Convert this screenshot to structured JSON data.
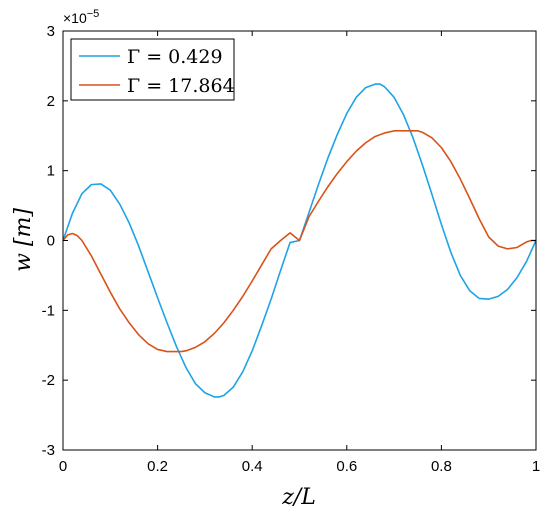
{
  "chart_data": {
    "type": "line",
    "xlabel": "z/L",
    "ylabel": "w [m]",
    "exponent_label": "×10",
    "exponent_power": "−5",
    "xlim": [
      0,
      1
    ],
    "ylim": [
      -3,
      3
    ],
    "x_ticks": [
      0,
      0.2,
      0.4,
      0.6,
      0.8,
      1
    ],
    "x_tick_labels": [
      "0",
      "0.2",
      "0.4",
      "0.6",
      "0.8",
      "1"
    ],
    "y_ticks": [
      -3,
      -2,
      -1,
      0,
      1,
      2,
      3
    ],
    "y_tick_labels": [
      "-3",
      "-2",
      "-1",
      "0",
      "1",
      "2",
      "3"
    ],
    "grid": false,
    "legend_position": "top-left",
    "series": [
      {
        "name": "Γ = 0.429",
        "color": "#1fa3e6",
        "x": [
          0,
          0.02,
          0.04,
          0.06,
          0.08,
          0.1,
          0.12,
          0.14,
          0.16,
          0.18,
          0.2,
          0.22,
          0.24,
          0.26,
          0.28,
          0.3,
          0.32,
          0.33,
          0.34,
          0.36,
          0.38,
          0.4,
          0.42,
          0.44,
          0.46,
          0.48,
          0.5,
          0.52,
          0.54,
          0.56,
          0.58,
          0.6,
          0.62,
          0.64,
          0.66,
          0.67,
          0.68,
          0.7,
          0.72,
          0.74,
          0.76,
          0.78,
          0.8,
          0.82,
          0.84,
          0.86,
          0.88,
          0.9,
          0.92,
          0.94,
          0.96,
          0.98,
          1.0
        ],
        "y": [
          0.0,
          0.39,
          0.67,
          0.8,
          0.81,
          0.72,
          0.52,
          0.25,
          -0.08,
          -0.45,
          -0.82,
          -1.18,
          -1.52,
          -1.82,
          -2.05,
          -2.18,
          -2.24,
          -2.24,
          -2.22,
          -2.1,
          -1.88,
          -1.58,
          -1.22,
          -0.84,
          -0.43,
          -0.03,
          0.0,
          0.4,
          0.8,
          1.18,
          1.52,
          1.82,
          2.05,
          2.19,
          2.24,
          2.24,
          2.2,
          2.05,
          1.8,
          1.47,
          1.08,
          0.66,
          0.23,
          -0.17,
          -0.5,
          -0.72,
          -0.83,
          -0.84,
          -0.8,
          -0.7,
          -0.53,
          -0.3,
          0.0
        ]
      },
      {
        "name": "Γ = 17.864",
        "color": "#d95319",
        "x": [
          0,
          0.01,
          0.02,
          0.03,
          0.04,
          0.06,
          0.08,
          0.1,
          0.12,
          0.14,
          0.16,
          0.18,
          0.2,
          0.22,
          0.24,
          0.25,
          0.26,
          0.28,
          0.3,
          0.32,
          0.34,
          0.36,
          0.38,
          0.4,
          0.42,
          0.44,
          0.46,
          0.48,
          0.5,
          0.52,
          0.54,
          0.56,
          0.58,
          0.6,
          0.62,
          0.64,
          0.66,
          0.68,
          0.7,
          0.72,
          0.74,
          0.75,
          0.76,
          0.78,
          0.8,
          0.82,
          0.84,
          0.86,
          0.88,
          0.9,
          0.92,
          0.94,
          0.96,
          0.97,
          0.98,
          0.99,
          1.0
        ],
        "y": [
          0.0,
          0.08,
          0.1,
          0.07,
          0.0,
          -0.22,
          -0.48,
          -0.74,
          -0.98,
          -1.18,
          -1.35,
          -1.48,
          -1.56,
          -1.59,
          -1.59,
          -1.59,
          -1.58,
          -1.53,
          -1.45,
          -1.33,
          -1.18,
          -1.0,
          -0.8,
          -0.58,
          -0.35,
          -0.12,
          0.0,
          0.11,
          0.0,
          0.34,
          0.56,
          0.77,
          0.96,
          1.13,
          1.28,
          1.4,
          1.49,
          1.54,
          1.57,
          1.57,
          1.57,
          1.57,
          1.55,
          1.47,
          1.33,
          1.13,
          0.88,
          0.6,
          0.31,
          0.05,
          -0.08,
          -0.12,
          -0.1,
          -0.06,
          -0.02,
          0.0,
          0.0
        ]
      }
    ]
  }
}
